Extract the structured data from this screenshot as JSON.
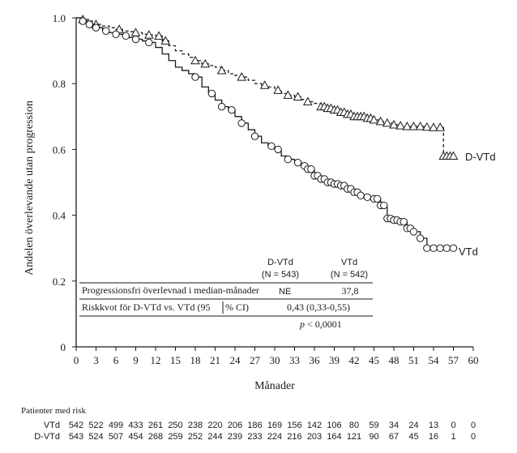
{
  "chart_data": {
    "type": "line",
    "subtype": "kaplan-meier step curve",
    "xlabel": "Månader",
    "ylabel": "Andelen överlevande utan progression",
    "xlim": [
      0,
      60
    ],
    "ylim": [
      0,
      1.0
    ],
    "x_ticks": [
      0,
      3,
      6,
      9,
      12,
      15,
      18,
      21,
      24,
      27,
      30,
      33,
      36,
      39,
      42,
      45,
      48,
      51,
      54,
      57,
      60
    ],
    "y_ticks": [
      "0",
      "0.2",
      "0.4",
      "0.6",
      "0.8",
      "1.0"
    ],
    "series": [
      {
        "name": "D-VTd",
        "line_style": "dashed",
        "marker": "triangle",
        "x": [
          0,
          1,
          2,
          3,
          4,
          5,
          6,
          7,
          8,
          9,
          10,
          11,
          12,
          13,
          14,
          15,
          16,
          17,
          18,
          19,
          20,
          21,
          22,
          23,
          24,
          25,
          26,
          27,
          28,
          29,
          30,
          31,
          32,
          33,
          34,
          35,
          36,
          37,
          38,
          39,
          40,
          41,
          42,
          43,
          44,
          45,
          46,
          47,
          48,
          49,
          50,
          51,
          52,
          53,
          54,
          55,
          55.5,
          56,
          57
        ],
        "y": [
          1.0,
          0.995,
          0.99,
          0.98,
          0.975,
          0.97,
          0.965,
          0.96,
          0.958,
          0.955,
          0.95,
          0.948,
          0.945,
          0.93,
          0.915,
          0.9,
          0.89,
          0.88,
          0.87,
          0.86,
          0.855,
          0.85,
          0.84,
          0.83,
          0.825,
          0.82,
          0.81,
          0.8,
          0.795,
          0.79,
          0.78,
          0.77,
          0.765,
          0.76,
          0.752,
          0.745,
          0.74,
          0.73,
          0.725,
          0.72,
          0.713,
          0.707,
          0.7,
          0.7,
          0.695,
          0.69,
          0.685,
          0.68,
          0.675,
          0.672,
          0.67,
          0.67,
          0.67,
          0.668,
          0.667,
          0.667,
          0.58,
          0.58,
          0.58
        ],
        "markers_x": [
          1,
          3,
          6.5,
          9,
          11,
          12.5,
          13.5,
          18,
          19.5,
          22,
          25,
          28.5,
          30.5,
          32,
          33.5,
          35,
          37,
          37.5,
          38,
          38.5,
          39,
          39.5,
          40,
          40.5,
          41,
          41.5,
          42,
          42.5,
          43,
          43.5,
          44,
          44.5,
          45,
          46,
          47,
          48,
          49,
          50,
          51,
          52,
          53,
          54,
          55,
          55.5,
          56,
          56.5,
          57
        ]
      },
      {
        "name": "VTd",
        "line_style": "solid",
        "marker": "circle",
        "x": [
          0,
          1,
          2,
          3,
          4,
          5,
          6,
          7,
          8,
          9,
          10,
          11,
          12,
          13,
          14,
          15,
          16,
          17,
          18,
          19,
          20,
          21,
          22,
          23,
          24,
          25,
          26,
          27,
          28,
          29,
          30,
          31,
          32,
          33,
          34,
          35,
          36,
          37,
          38,
          39,
          40,
          41,
          42,
          43,
          44,
          45,
          46,
          47,
          48,
          49,
          50,
          51,
          52,
          53,
          54,
          55,
          56,
          57
        ],
        "y": [
          1.0,
          0.99,
          0.98,
          0.97,
          0.96,
          0.955,
          0.95,
          0.945,
          0.94,
          0.935,
          0.93,
          0.925,
          0.91,
          0.89,
          0.87,
          0.85,
          0.84,
          0.83,
          0.82,
          0.79,
          0.77,
          0.75,
          0.73,
          0.72,
          0.7,
          0.68,
          0.66,
          0.64,
          0.62,
          0.61,
          0.6,
          0.58,
          0.57,
          0.56,
          0.55,
          0.54,
          0.52,
          0.51,
          0.5,
          0.495,
          0.49,
          0.48,
          0.47,
          0.46,
          0.455,
          0.45,
          0.43,
          0.39,
          0.385,
          0.38,
          0.36,
          0.35,
          0.33,
          0.3,
          0.3,
          0.3,
          0.3,
          0.3
        ],
        "markers_x": [
          1,
          2,
          3,
          4.5,
          6,
          7.5,
          9,
          11,
          18,
          20.5,
          22,
          23.5,
          25,
          27,
          29.5,
          30.5,
          32,
          33.5,
          34.5,
          35,
          35.5,
          36,
          36.5,
          37,
          37.5,
          38,
          38.5,
          39,
          39.5,
          40,
          40.5,
          41,
          41.5,
          42,
          42.5,
          43,
          44,
          45,
          45.5,
          46,
          46.5,
          47,
          47.5,
          48,
          48.5,
          49,
          49.5,
          50,
          50.5,
          51,
          52,
          53,
          54,
          55,
          56,
          57
        ]
      }
    ],
    "series_labels": [
      "D-VTd",
      "VTd"
    ],
    "stats_table": {
      "header_a": "D-VTd",
      "header_a_n": "(N = 543)",
      "header_b": "VTd",
      "header_b_n": "(N = 542)",
      "row1_label": "Progressionsfri överlevnad i median-månader",
      "row1_a": "NE",
      "row1_b": "37,8",
      "row2_label_a": "Riskkvot för D-VTd  vs. VTd (95",
      "row2_label_b": "% CI)",
      "row2_value": "0,43 (0,33-0,55)",
      "row3_p": "p",
      "row3_value": "< 0,0001"
    },
    "risk_table": {
      "title": "Patienter med risk",
      "rows": [
        {
          "label": "VTd",
          "values": [
            "542",
            "522",
            "499",
            "433",
            "261",
            "250",
            "238",
            "220",
            "206",
            "186",
            "169",
            "156",
            "142",
            "106",
            "80",
            "59",
            "34",
            "24",
            "13",
            "0",
            "0"
          ]
        },
        {
          "label": "D-VTd",
          "values": [
            "543",
            "524",
            "507",
            "454",
            "268",
            "259",
            "252",
            "244",
            "239",
            "233",
            "224",
            "216",
            "203",
            "164",
            "121",
            "90",
            "67",
            "45",
            "16",
            "1",
            "0"
          ]
        }
      ]
    }
  }
}
